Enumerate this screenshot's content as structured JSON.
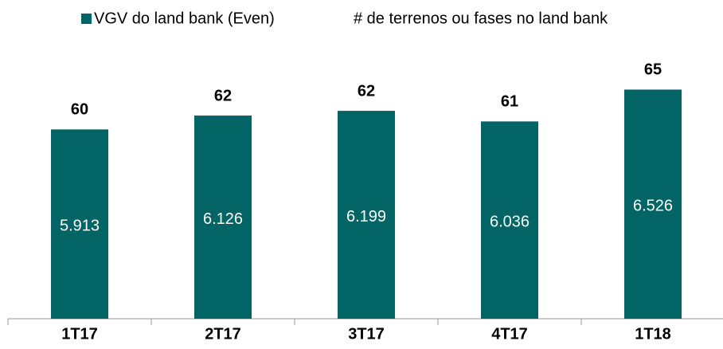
{
  "chart_data": {
    "type": "bar",
    "categories": [
      "1T17",
      "2T17",
      "3T17",
      "4T17",
      "1T18"
    ],
    "series": [
      {
        "name": "VGV do land bank (Even)",
        "color": "#036466",
        "values": [
          5.913,
          6.126,
          6.199,
          6.036,
          6.526
        ]
      },
      {
        "name": "# de terrenos ou fases no land bank",
        "values": [
          60,
          62,
          62,
          61,
          65
        ]
      }
    ],
    "ylim": [
      3,
      7.5
    ]
  }
}
